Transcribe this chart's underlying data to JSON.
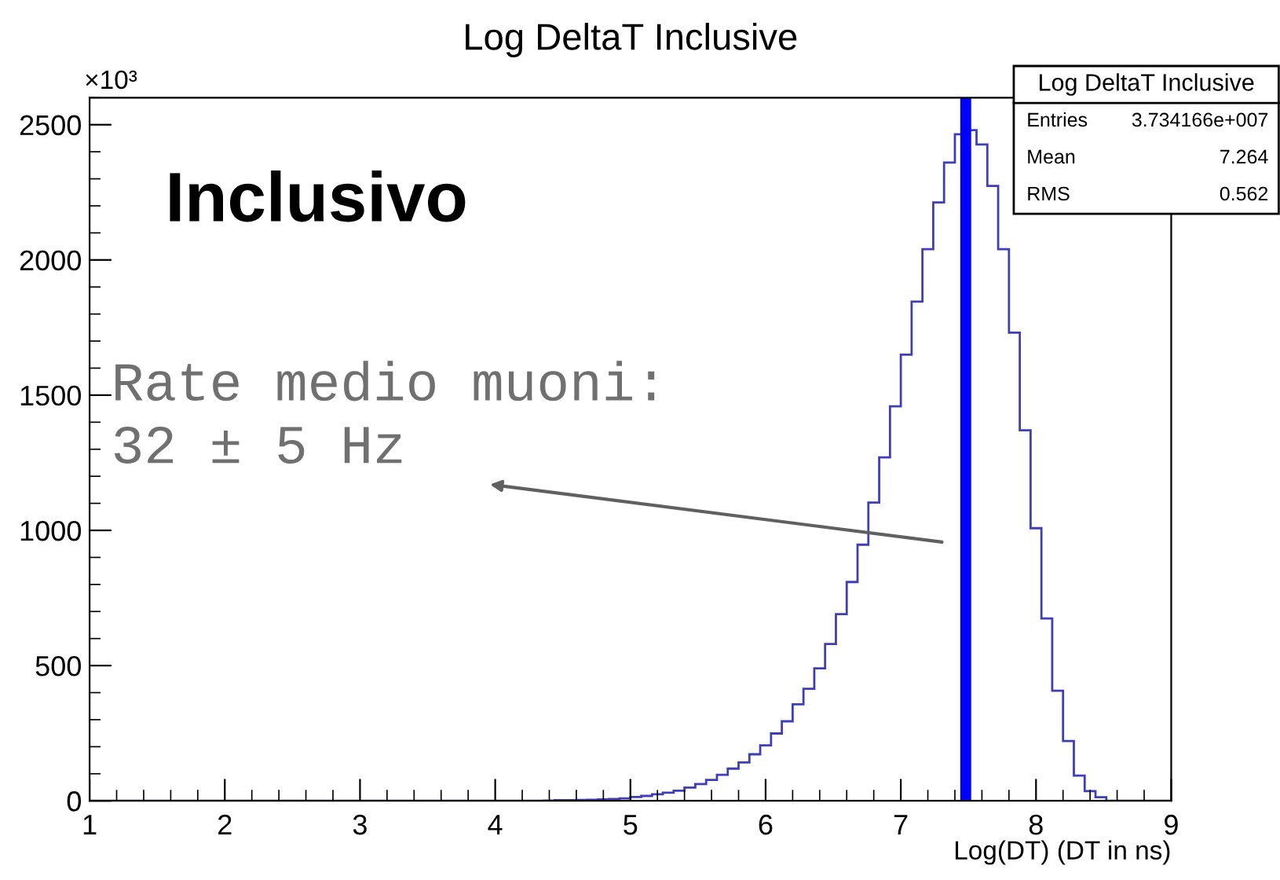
{
  "chart_data": {
    "type": "histogram",
    "title": "Log DeltaT Inclusive",
    "xlabel": "Log(DT) (DT in ns)",
    "bins": [
      1,
      1.08,
      1.16,
      1.24,
      1.32,
      1.4,
      1.48,
      1.56,
      1.64,
      1.72,
      1.8,
      1.88,
      1.96,
      2.04,
      2.12,
      2.2,
      2.28,
      2.36,
      2.44,
      2.52,
      2.6,
      2.68,
      2.76,
      2.84,
      2.92,
      3,
      3.08,
      3.16,
      3.24,
      3.32,
      3.4,
      3.48,
      3.56,
      3.64,
      3.72,
      3.8,
      3.88,
      3.96,
      4.04,
      4.12,
      4.2,
      4.28,
      4.36,
      4.44,
      4.52,
      4.6,
      4.68,
      4.76,
      4.84,
      4.92,
      5,
      5.08,
      5.16,
      5.24,
      5.32,
      5.4,
      5.48,
      5.56,
      5.64,
      5.72,
      5.8,
      5.88,
      5.96,
      6.04,
      6.12,
      6.2,
      6.28,
      6.36,
      6.44,
      6.52,
      6.6,
      6.68,
      6.76,
      6.84,
      6.92,
      7,
      7.08,
      7.16,
      7.24,
      7.32,
      7.4,
      7.48,
      7.56,
      7.64,
      7.72,
      7.8,
      7.88,
      7.96,
      8.04,
      8.12,
      8.2,
      8.28,
      8.36,
      8.44,
      8.52,
      8.6,
      8.68,
      8.76,
      8.84,
      8.92,
      9
    ],
    "values": [
      0,
      0,
      0,
      0,
      0,
      0,
      0,
      0,
      0,
      0,
      0,
      0,
      0,
      0,
      0,
      0,
      0,
      0,
      0,
      0,
      0,
      0,
      0,
      0,
      0,
      0,
      0,
      0,
      0,
      0,
      0,
      0,
      0,
      0,
      0,
      0,
      0,
      0,
      0,
      0,
      0,
      0,
      1,
      2,
      2,
      3,
      4,
      5,
      7,
      9,
      14,
      18,
      24,
      30,
      37,
      49,
      62,
      77,
      96,
      119,
      142,
      172,
      205,
      249,
      294,
      357,
      414,
      490,
      580,
      690,
      809,
      947,
      1103,
      1270,
      1459,
      1650,
      1846,
      2040,
      2213,
      2360,
      2465,
      2480,
      2427,
      2274,
      2040,
      1731,
      1370,
      1008,
      674,
      407,
      221,
      93,
      36,
      13,
      0,
      0,
      0,
      0,
      0,
      0
    ],
    "color": "#3f3fb5",
    "xlim": [
      1,
      9
    ],
    "ylim": [
      0,
      2600
    ],
    "xticks": [
      1,
      2,
      3,
      4,
      5,
      6,
      7,
      8,
      9
    ],
    "yticks": [
      0,
      500,
      1000,
      1500,
      2000,
      2500
    ],
    "grid": false,
    "ref_lines": [
      {
        "axis": "x",
        "value": 7.48,
        "color": "#0000ff"
      }
    ],
    "annotations": [
      "×10³",
      "Inclusivo",
      "Rate medio muoni:\n32 ± 5 Hz",
      "Log DeltaT Inclusive",
      "Entries",
      "3.734166e+007",
      "Mean",
      "7.264",
      "RMS",
      "0.562"
    ]
  }
}
